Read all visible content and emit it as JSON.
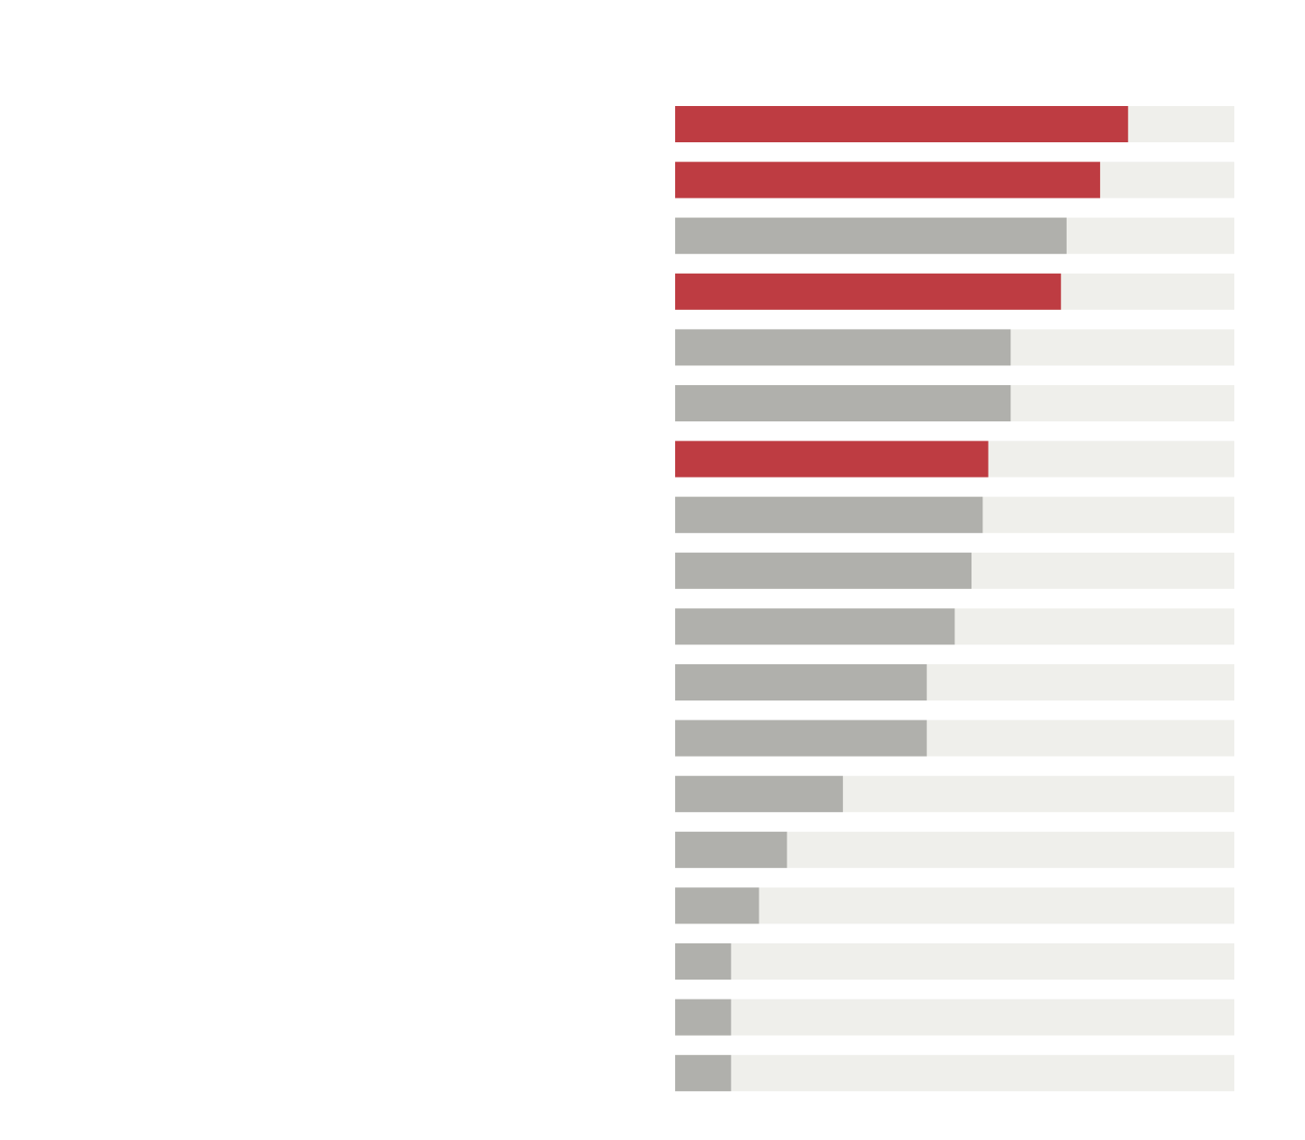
{
  "chart_data": {
    "type": "barh",
    "categories": [
      null,
      null,
      null,
      null,
      null,
      null,
      null,
      null,
      null,
      null,
      null,
      null,
      null,
      null,
      null,
      null,
      null,
      null
    ],
    "values": [
      81,
      76,
      70,
      69,
      60,
      60,
      56,
      55,
      53,
      50,
      45,
      45,
      30,
      20,
      15,
      10,
      10,
      10
    ],
    "colors": [
      "#be3c42",
      "#be3c42",
      "#b0b0ac",
      "#be3c42",
      "#b0b0ac",
      "#b0b0ac",
      "#be3c42",
      "#b0b0ac",
      "#b0b0ac",
      "#b0b0ac",
      "#b0b0ac",
      "#b0b0ac",
      "#b0b0ac",
      "#b0b0ac",
      "#b0b0ac",
      "#b0b0ac",
      "#b0b0ac",
      "#b0b0ac"
    ],
    "track_color": "#efefeb",
    "xlim": [
      0,
      100
    ]
  }
}
